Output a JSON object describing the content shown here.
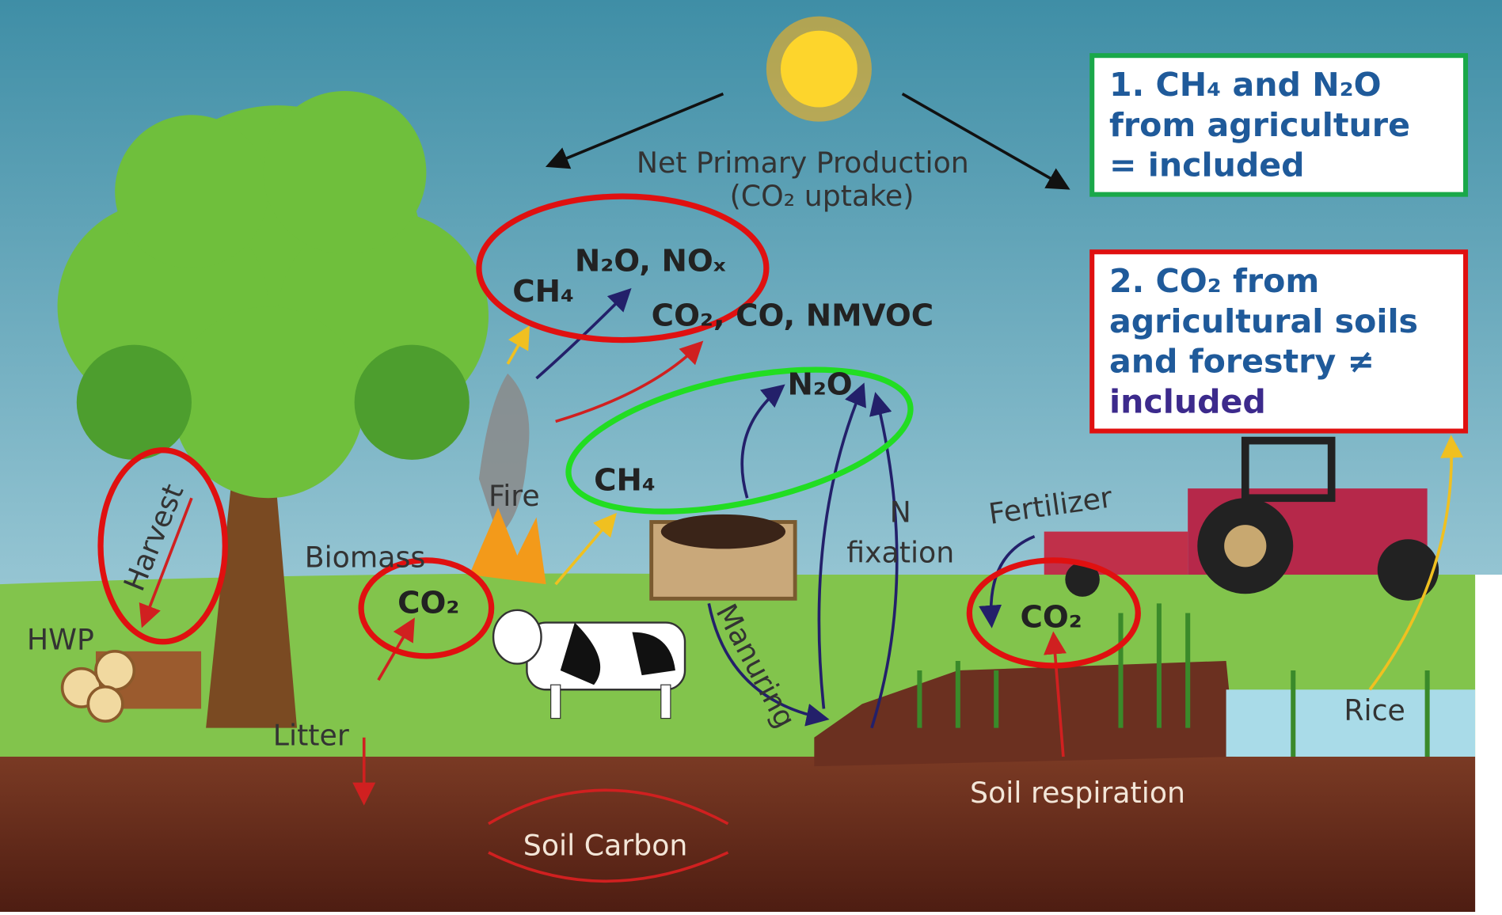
{
  "sky": {
    "npp": "Net Primary Production",
    "npp_sub": "(CO₂ uptake)"
  },
  "emissions": {
    "fire_ch4": "CH₄",
    "fire_n2o": "N₂O, NOₓ",
    "fire_co2": "CO₂, CO, NMVOC",
    "manure_n2o": "N₂O",
    "manure_ch4": "CH₄"
  },
  "labels": {
    "fire": "Fire",
    "biomass": "Biomass",
    "biomass_co2": "CO₂",
    "harvest": "Harvest",
    "hwp": "HWP",
    "litter": "Litter",
    "manuring": "Manuring",
    "n": "N",
    "fixation": "fixation",
    "fertilizer": "Fertilizer",
    "soil_co2": "CO₂",
    "soil_respiration": "Soil respiration",
    "rice": "Rice",
    "soil_carbon": "Soil Carbon"
  },
  "notes": [
    {
      "lines": [
        "1. CH₄ and N₂O",
        "from agriculture",
        "= included"
      ]
    },
    {
      "lines": [
        "2. CO₂ from",
        "agricultural soils",
        "and forestry ≠",
        "included"
      ]
    }
  ]
}
